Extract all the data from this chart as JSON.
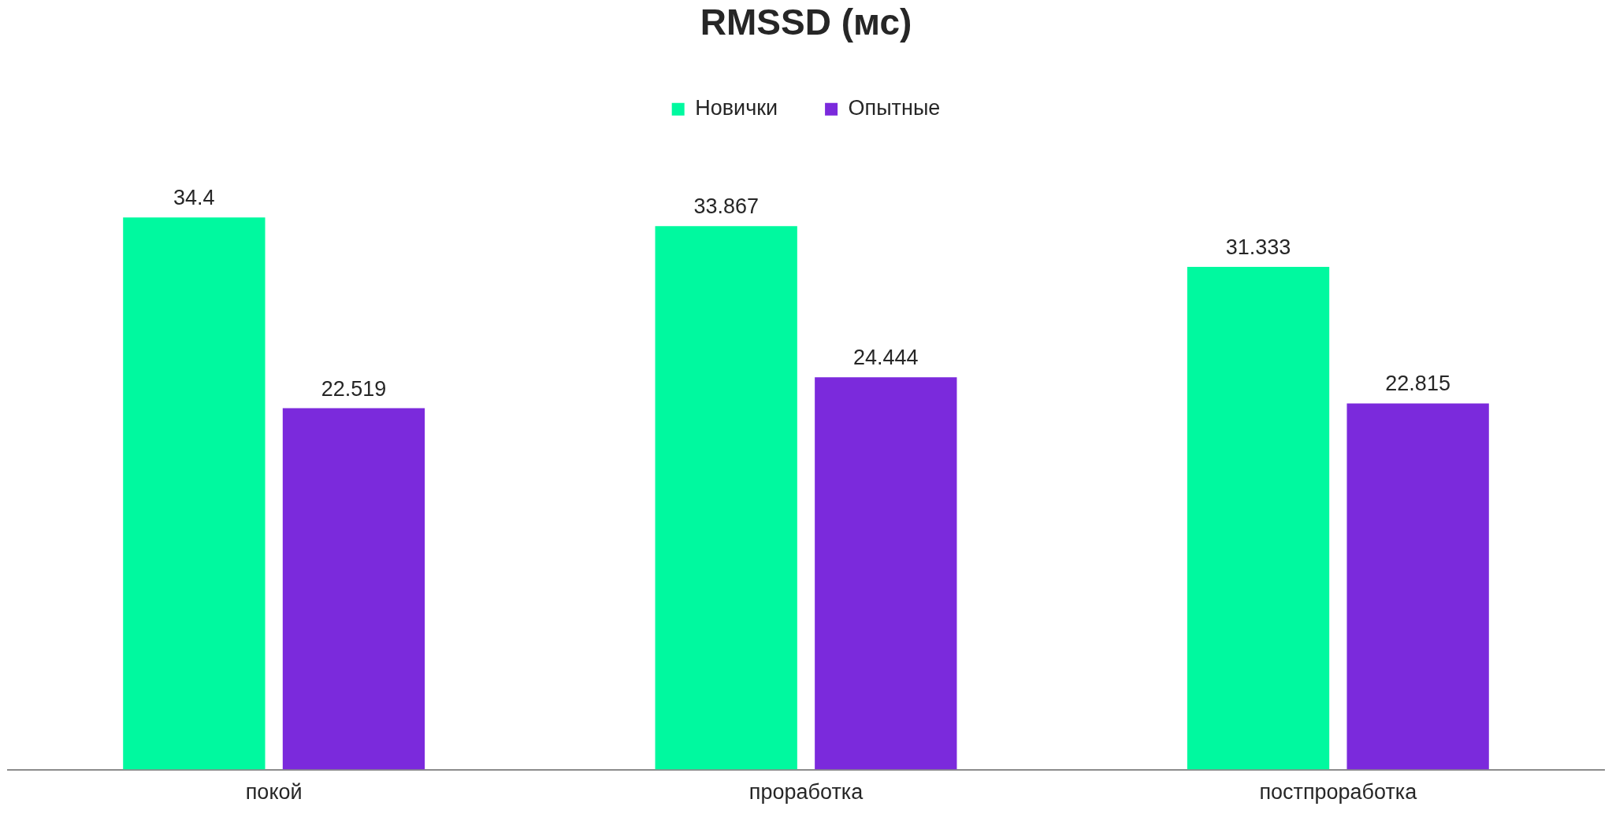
{
  "chart_data": {
    "type": "bar",
    "title": "RMSSD (мс)",
    "categories": [
      "покой",
      "проработка",
      "постпроработка"
    ],
    "series": [
      {
        "name": "Новички",
        "color": "#00f99f",
        "values": [
          34.4,
          33.867,
          31.333
        ]
      },
      {
        "name": "Опытные",
        "color": "#7b2adc",
        "values": [
          22.519,
          24.444,
          22.815
        ]
      }
    ],
    "data_labels": true,
    "legend": "top",
    "grid": false,
    "tick_labels": "x"
  }
}
